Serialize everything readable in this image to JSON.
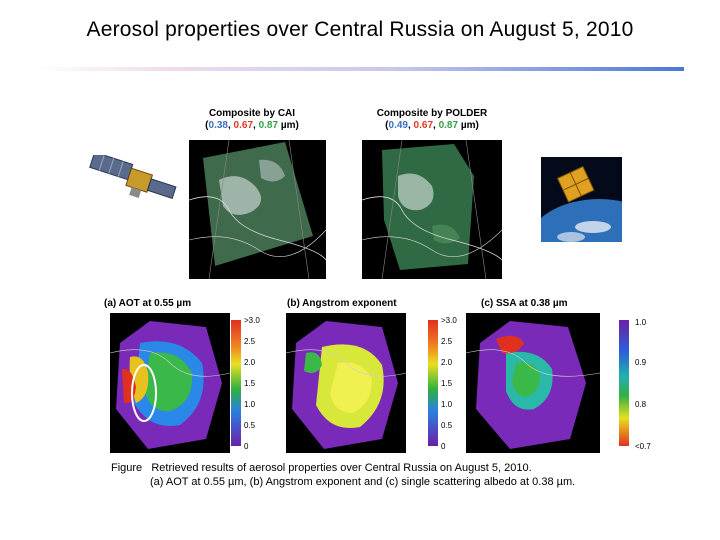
{
  "slide": {
    "title": "Aerosol properties over Central Russia on August 5, 2010"
  },
  "composites": [
    {
      "caption": "Composite by CAI",
      "open": "(",
      "b1": "0.38",
      "sep1": ", ",
      "b2": "0.67",
      "sep2": ", ",
      "b3": "0.87",
      "close": " µm)"
    },
    {
      "caption": "Composite by POLDER",
      "open": "(",
      "b1": "0.49",
      "sep1": ", ",
      "b2": "0.67",
      "sep2": ", ",
      "b3": "0.87",
      "close": " µm)"
    }
  ],
  "panels": [
    {
      "label": "(a) AOT at 0.55 µm",
      "ticks": [
        ">3.0",
        "2.5",
        "2.0",
        "1.5",
        "1.0",
        "0.5",
        "0"
      ]
    },
    {
      "label": "(b) Angstrom exponent",
      "ticks": [
        ">3.0",
        "2.5",
        "2.0",
        "1.5",
        "1.0",
        "0.5",
        "0"
      ]
    },
    {
      "label": "(c) SSA at 0.38 µm",
      "ticks": [
        "1.0",
        "0.9",
        "0.8",
        "<0.7"
      ]
    }
  ],
  "figure": {
    "label": "Figure",
    "line1": "Retrieved results of aerosol properties over Central Russia on August 5, 2010.",
    "line2": "(a) AOT at 0.55 µm, (b) Angstrom exponent and (c) single scattering albedo at 0.38 µm."
  },
  "colors": {
    "cai_band_1": "#3a6fc4",
    "cai_band_2": "#e03a2a",
    "cai_band_3": "#3aa04a",
    "rule_end": "#4a78d8"
  }
}
